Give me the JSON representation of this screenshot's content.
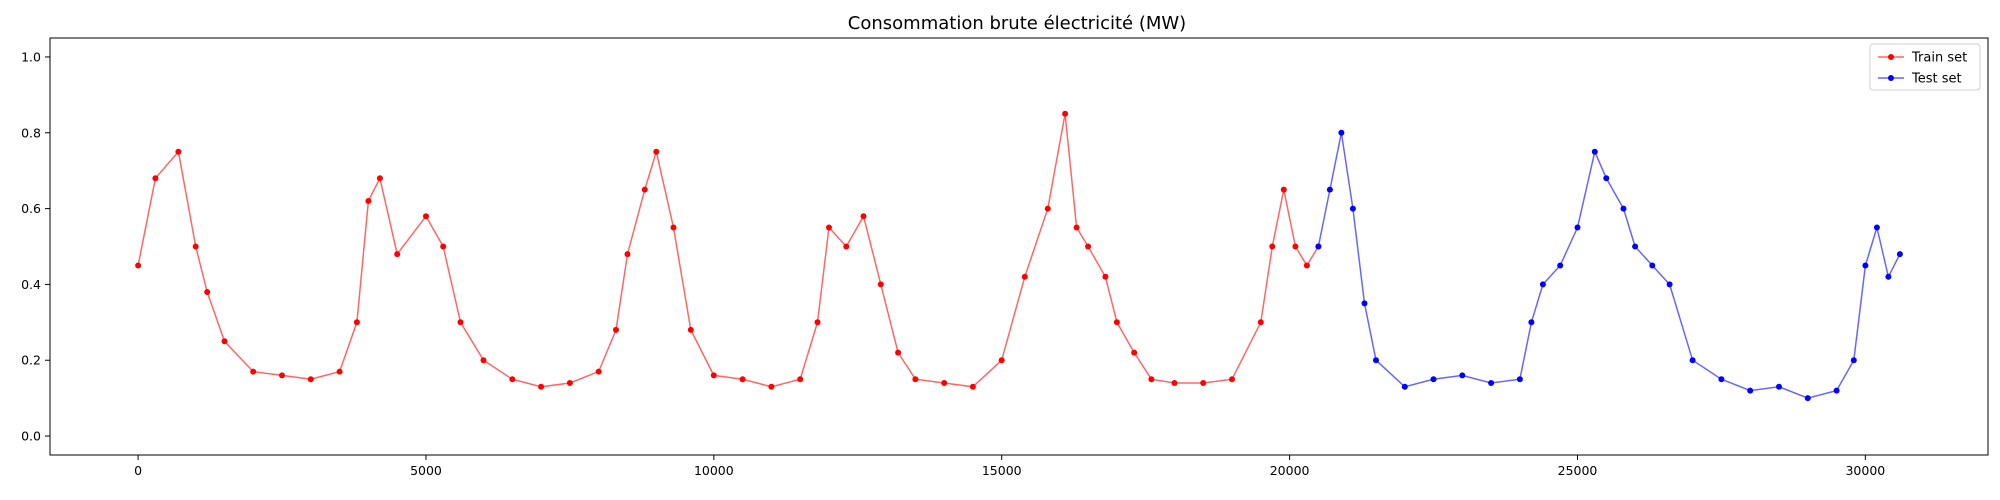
{
  "chart_data": {
    "type": "line",
    "title": "Consommation brute électricité (MW)",
    "xlabel": "",
    "ylabel": "",
    "xlim": [
      -1530,
      32130
    ],
    "ylim": [
      -0.05,
      1.05
    ],
    "xticks": [
      0,
      5000,
      10000,
      15000,
      20000,
      25000,
      30000
    ],
    "yticks": [
      0.0,
      0.2,
      0.4,
      0.6,
      0.8,
      1.0
    ],
    "xtick_labels": [
      "0",
      "5000",
      "10000",
      "15000",
      "20000",
      "25000",
      "30000"
    ],
    "ytick_labels": [
      "0.0",
      "0.2",
      "0.4",
      "0.6",
      "0.8",
      "1.0"
    ],
    "grid": false,
    "legend_position": "top-right",
    "series": [
      {
        "name": "Train set",
        "color": "#ff0000",
        "marker": "circle",
        "x": [
          0,
          300,
          700,
          1000,
          1200,
          1500,
          2000,
          2500,
          3000,
          3500,
          3800,
          4000,
          4200,
          4500,
          5000,
          5300,
          5600,
          6000,
          6500,
          7000,
          7500,
          8000,
          8300,
          8500,
          8800,
          9000,
          9300,
          9600,
          10000,
          10500,
          11000,
          11500,
          11800,
          12000,
          12300,
          12600,
          12900,
          13200,
          13500,
          14000,
          14500,
          15000,
          15400,
          15800,
          16100,
          16300,
          16500,
          16800,
          17000,
          17300,
          17600,
          18000,
          18500,
          19000,
          19500,
          19700,
          19900,
          20100,
          20300,
          20500
        ],
        "y": [
          0.45,
          0.68,
          0.75,
          0.5,
          0.38,
          0.25,
          0.17,
          0.16,
          0.15,
          0.17,
          0.3,
          0.62,
          0.68,
          0.48,
          0.58,
          0.5,
          0.3,
          0.2,
          0.15,
          0.13,
          0.14,
          0.17,
          0.28,
          0.48,
          0.65,
          0.75,
          0.55,
          0.28,
          0.16,
          0.15,
          0.13,
          0.15,
          0.3,
          0.55,
          0.5,
          0.58,
          0.4,
          0.22,
          0.15,
          0.14,
          0.13,
          0.2,
          0.42,
          0.6,
          0.85,
          0.55,
          0.5,
          0.42,
          0.3,
          0.22,
          0.15,
          0.14,
          0.14,
          0.15,
          0.3,
          0.5,
          0.65,
          0.5,
          0.45,
          0.5
        ]
      },
      {
        "name": "Test set",
        "color": "#0000ff",
        "marker": "circle",
        "x": [
          20500,
          20700,
          20900,
          21100,
          21300,
          21500,
          22000,
          22500,
          23000,
          23500,
          24000,
          24200,
          24400,
          24700,
          25000,
          25300,
          25500,
          25800,
          26000,
          26300,
          26600,
          27000,
          27500,
          28000,
          28500,
          29000,
          29500,
          29800,
          30000,
          30200,
          30400,
          30600
        ],
        "y": [
          0.5,
          0.65,
          0.8,
          0.6,
          0.35,
          0.2,
          0.13,
          0.15,
          0.16,
          0.14,
          0.15,
          0.3,
          0.4,
          0.45,
          0.55,
          0.75,
          0.68,
          0.6,
          0.5,
          0.45,
          0.4,
          0.2,
          0.15,
          0.12,
          0.13,
          0.1,
          0.12,
          0.2,
          0.45,
          0.55,
          0.42,
          0.48
        ]
      }
    ]
  }
}
